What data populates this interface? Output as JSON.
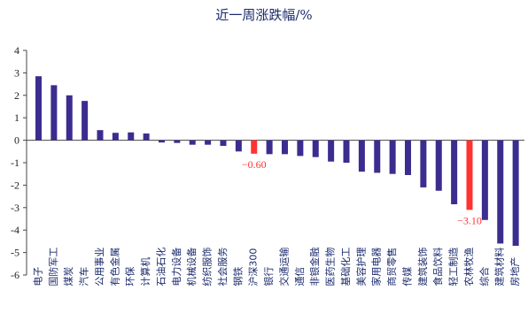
{
  "chart_data": {
    "type": "bar",
    "title": "近一周涨跌幅/%",
    "xlabel": "",
    "ylabel": "",
    "ylim": [
      -6,
      4
    ],
    "yticks": [
      4,
      3,
      2,
      1,
      0,
      -1,
      -2,
      -3,
      -4,
      -5,
      -6
    ],
    "grid": false,
    "legend": "none",
    "colors": {
      "default": "#3b2d8f",
      "highlight": "#ff3333",
      "text": "#1a2a6c"
    },
    "highlight_labels": [
      "-0.60",
      "-3.10"
    ],
    "categories": [
      "电子",
      "国防军工",
      "煤炭",
      "汽车",
      "公用事业",
      "有色金属",
      "环保",
      "计算机",
      "石油石化",
      "电力设备",
      "机械设备",
      "纺织服饰",
      "社会服务",
      "钢铁",
      "沪深300",
      "银行",
      "交通运输",
      "通信",
      "非银金融",
      "医药生物",
      "基础化工",
      "美容护理",
      "家用电器",
      "商贸零售",
      "传媒",
      "建筑装饰",
      "食品饮料",
      "轻工制造",
      "农林牧渔",
      "综合",
      "建筑材料",
      "房地产"
    ],
    "values": [
      2.85,
      2.45,
      2.0,
      1.75,
      0.45,
      0.33,
      0.35,
      0.3,
      -0.1,
      -0.12,
      -0.2,
      -0.2,
      -0.25,
      -0.5,
      -0.6,
      -0.62,
      -0.62,
      -0.7,
      -0.75,
      -0.95,
      -1.0,
      -1.4,
      -1.45,
      -1.5,
      -1.55,
      -2.1,
      -2.25,
      -2.85,
      -3.1,
      -3.55,
      -4.6,
      -4.7
    ],
    "highlight_index": [
      14,
      28
    ]
  }
}
